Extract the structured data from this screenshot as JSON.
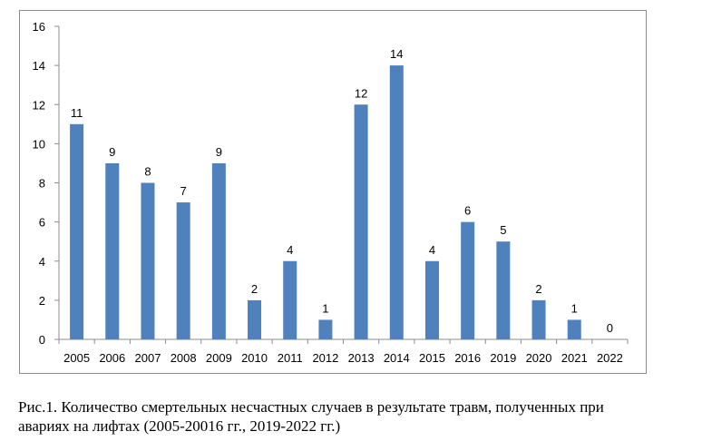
{
  "chart_data": {
    "type": "bar",
    "categories": [
      "2005",
      "2006",
      "2007",
      "2008",
      "2009",
      "2010",
      "2011",
      "2012",
      "2013",
      "2014",
      "2015",
      "2016",
      "2019",
      "2020",
      "2021",
      "2022"
    ],
    "values": [
      11,
      9,
      8,
      7,
      9,
      2,
      4,
      1,
      12,
      14,
      4,
      6,
      5,
      2,
      1,
      0
    ],
    "ylim": [
      0,
      16
    ],
    "yticks": [
      0,
      2,
      4,
      6,
      8,
      10,
      12,
      14,
      16
    ],
    "title": "",
    "xlabel": "",
    "ylabel": "",
    "grid": false,
    "legend": "none",
    "bar_color": "#4f81bd",
    "data_labels": true
  },
  "caption": {
    "line1": "Рис.1. Количество смертельных несчастных случаев в результате травм, полученных при",
    "line2": "авариях на лифтах (2005-20016 гг., 2019-2022 гг.)"
  }
}
